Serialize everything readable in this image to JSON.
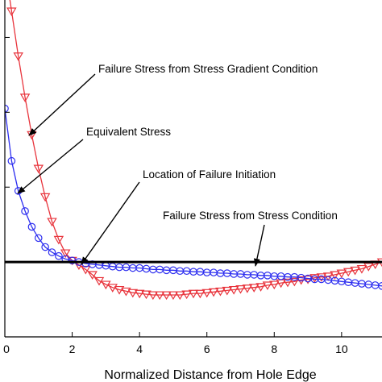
{
  "chart_data": {
    "type": "line",
    "xlabel": "Normalized Distance from Hole Edge",
    "ylabel": "",
    "xlim": [
      0,
      11.2
    ],
    "ylim": [
      0,
      4.5
    ],
    "x_ticks": [
      0,
      2,
      4,
      6,
      8,
      10
    ],
    "x_tick_labels": [
      "0",
      "2",
      "4",
      "6",
      "8",
      "10"
    ],
    "y_ticks": [
      0,
      1,
      2,
      3,
      4
    ],
    "grid": false,
    "legend": "none",
    "series": [
      {
        "color": "#e8343c",
        "marker": "triangle-down",
        "x": [
          0,
          0.2,
          0.4,
          0.6,
          0.8,
          1.0,
          1.2,
          1.4,
          1.6,
          1.8,
          2.0,
          2.2,
          2.4,
          2.6,
          2.8,
          3.0,
          3.2,
          3.4,
          3.6,
          3.8,
          4.0,
          4.2,
          4.4,
          4.6,
          4.8,
          5.0,
          5.2,
          5.4,
          5.6,
          5.8,
          6.0,
          6.2,
          6.4,
          6.6,
          6.8,
          7.0,
          7.2,
          7.4,
          7.6,
          7.8,
          8.0,
          8.2,
          8.4,
          8.6,
          8.8,
          9.0,
          9.2,
          9.4,
          9.6,
          9.8,
          10.0,
          10.2,
          10.4,
          10.6,
          10.8,
          11.0,
          11.2
        ],
        "values": [
          4.95,
          4.35,
          3.75,
          3.2,
          2.7,
          2.25,
          1.87,
          1.54,
          1.3,
          1.12,
          1.02,
          0.96,
          0.9,
          0.83,
          0.75,
          0.7,
          0.66,
          0.63,
          0.61,
          0.59,
          0.58,
          0.57,
          0.56,
          0.56,
          0.56,
          0.56,
          0.56,
          0.57,
          0.58,
          0.58,
          0.59,
          0.6,
          0.61,
          0.62,
          0.63,
          0.64,
          0.65,
          0.66,
          0.67,
          0.69,
          0.7,
          0.72,
          0.73,
          0.74,
          0.76,
          0.77,
          0.79,
          0.8,
          0.81,
          0.83,
          0.85,
          0.87,
          0.89,
          0.91,
          0.94,
          0.97,
          1.0
        ]
      },
      {
        "color": "#2d2ef0",
        "marker": "circle",
        "x": [
          0,
          0.2,
          0.4,
          0.6,
          0.8,
          1.0,
          1.2,
          1.4,
          1.6,
          1.8,
          2.0,
          2.2,
          2.4,
          2.6,
          2.8,
          3.0,
          3.2,
          3.4,
          3.6,
          3.8,
          4.0,
          4.2,
          4.4,
          4.6,
          4.8,
          5.0,
          5.2,
          5.4,
          5.6,
          5.8,
          6.0,
          6.2,
          6.4,
          6.6,
          6.8,
          7.0,
          7.2,
          7.4,
          7.6,
          7.8,
          8.0,
          8.2,
          8.4,
          8.6,
          8.8,
          9.0,
          9.2,
          9.4,
          9.6,
          9.8,
          10.0,
          10.2,
          10.4,
          10.6,
          10.8,
          11.0,
          11.2
        ],
        "values": [
          3.05,
          2.35,
          1.95,
          1.68,
          1.47,
          1.32,
          1.2,
          1.13,
          1.08,
          1.04,
          1.02,
          1.0,
          0.98,
          0.97,
          0.96,
          0.95,
          0.94,
          0.93,
          0.93,
          0.92,
          0.92,
          0.91,
          0.9,
          0.9,
          0.89,
          0.89,
          0.88,
          0.88,
          0.87,
          0.87,
          0.86,
          0.86,
          0.85,
          0.85,
          0.84,
          0.84,
          0.83,
          0.83,
          0.82,
          0.82,
          0.81,
          0.81,
          0.8,
          0.8,
          0.79,
          0.78,
          0.77,
          0.77,
          0.76,
          0.75,
          0.74,
          0.73,
          0.72,
          0.71,
          0.7,
          0.69,
          0.68
        ]
      },
      {
        "color": "#000000",
        "marker": "none",
        "x": [
          0,
          11.2
        ],
        "values": [
          1.0,
          1.0
        ]
      }
    ],
    "annotations": [
      {
        "text": "Failure Stress from Stress Gradient Condition",
        "arrow_to": [
          1.45,
          1.95
        ]
      },
      {
        "text": "Equivalent Stress",
        "arrow_to": [
          0.25,
          1.1
        ]
      },
      {
        "text": "Location of Failure Initiation",
        "arrow_to": [
          2.3,
          1.0
        ]
      },
      {
        "text": "Failure Stress from Stress Condition",
        "arrow_to": [
          7.4,
          1.0
        ]
      }
    ]
  }
}
